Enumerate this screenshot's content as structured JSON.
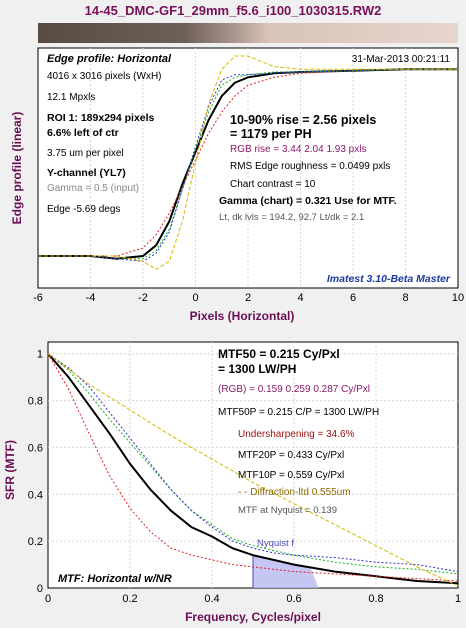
{
  "page": {
    "title": "14-45_DMC-GF1_29mm_f5.6_i100_1030315.RW2"
  },
  "top_chart_text": {
    "panel_title": "Edge profile: Horizontal",
    "date": "31-Mar-2013 00:21:11",
    "info": [
      "4016 x 3016 pixels (WxH)",
      "12.1 Mpxls",
      "ROI 1:  189x294 pixels",
      "6.6% left of ctr",
      "3.75 um per pixel",
      "Y-channel  (YL7)",
      "Gamma = 0.5 (input)",
      "Edge -5.69 degs"
    ],
    "results": {
      "rise": "10-90% rise = 2.56 pixels",
      "per_ph": "= 1179 per PH",
      "rgb_rise": "RGB rise = 3.44  2.04  1.93 pxls",
      "roughness": "RMS Edge roughness = 0.0499 pxls",
      "contrast": "Chart contrast = 10",
      "gamma_chart": "Gamma (chart) = 0.321  Use for MTF.",
      "levels": "Lt, dk lvls = 194.2, 92.7  Lt/dk = 2.1"
    },
    "watermark": "Imatest 3.10-Beta Master"
  },
  "bottom_chart_text": {
    "mtf50": "MTF50 = 0.215 Cy/Pxl",
    "lwph": "= 1300 LW/PH",
    "rgb": "(RGB) = 0.159  0.259  0.287 Cy/Pxl",
    "mtf50p": "MTF50P = 0.215 C/P = 1300 LW/PH",
    "sharpening": "Undersharpening = 34.6%",
    "mtf20p": "MTF20P = 0.433 Cy/Pxl",
    "mtf10p": "MTF10P = 0.559 Cy/Pxl",
    "diffraction": "- -  Diffraction-ltd  0.555um",
    "nyquist_mtf": "MTF at Nyquist = 0.139",
    "nyquist_label": "Nyquist f",
    "bottom_title": "MTF: Horizontal w/NR"
  },
  "colors": {
    "title": "#7a0f5a",
    "axis_label": "#6a0f55",
    "black": "#000000",
    "red": "#e02020",
    "green": "#18b018",
    "blue": "#3030d0",
    "yellow": "#d8b800",
    "purple": "#6a1f7a",
    "dark_red": "#9a1010",
    "watermark": "#1a3aa0",
    "nyquist_fill": "#b8b8f0",
    "plot_bg": "#ffffff"
  },
  "chart_data": [
    {
      "type": "line",
      "xlabel": "Pixels (Horizontal)",
      "ylabel": "Edge profile (linear)",
      "xlim": [
        -6,
        10
      ],
      "x_ticks": [
        "-6",
        "-4",
        "-2",
        "0",
        "2",
        "4",
        "6",
        "8",
        "10"
      ],
      "series": [
        {
          "color": "black",
          "x": [
            -6,
            -4,
            -3,
            -2,
            -1.5,
            -1,
            -0.5,
            0,
            0.5,
            1,
            1.5,
            2,
            3,
            4,
            6,
            8,
            10
          ],
          "y": [
            0.27,
            0.27,
            0.26,
            0.27,
            0.31,
            0.4,
            0.54,
            0.66,
            0.78,
            0.87,
            0.92,
            0.94,
            0.955,
            0.96,
            0.965,
            0.97,
            0.97
          ]
        },
        {
          "color": "red",
          "x": [
            -6,
            -4,
            -3,
            -2,
            -1.5,
            -1,
            -0.5,
            0,
            0.5,
            1,
            1.5,
            2,
            3,
            4,
            6,
            8,
            10
          ],
          "y": [
            0.27,
            0.27,
            0.27,
            0.3,
            0.35,
            0.43,
            0.53,
            0.63,
            0.73,
            0.81,
            0.87,
            0.91,
            0.94,
            0.955,
            0.965,
            0.97,
            0.97
          ]
        },
        {
          "color": "green",
          "x": [
            -6,
            -4,
            -3,
            -2,
            -1.5,
            -1,
            -0.5,
            0,
            0.5,
            1,
            1.5,
            2,
            3,
            4,
            6,
            8,
            10
          ],
          "y": [
            0.27,
            0.27,
            0.26,
            0.26,
            0.29,
            0.37,
            0.52,
            0.67,
            0.81,
            0.91,
            0.94,
            0.95,
            0.96,
            0.96,
            0.965,
            0.97,
            0.97
          ]
        },
        {
          "color": "blue",
          "x": [
            -6,
            -4,
            -3,
            -2,
            -1.5,
            -1,
            -0.5,
            0,
            0.5,
            1,
            1.5,
            2,
            3,
            4,
            6,
            8,
            10
          ],
          "y": [
            0.27,
            0.27,
            0.26,
            0.25,
            0.28,
            0.36,
            0.52,
            0.68,
            0.83,
            0.93,
            0.95,
            0.95,
            0.955,
            0.96,
            0.965,
            0.97,
            0.97
          ]
        },
        {
          "color": "yellow",
          "x": [
            -6,
            -4,
            -3,
            -2,
            -1.5,
            -1,
            -0.5,
            0,
            0.5,
            1,
            1.5,
            2,
            2.5,
            3,
            4,
            6,
            8,
            10
          ],
          "y": [
            0.27,
            0.27,
            0.27,
            0.25,
            0.22,
            0.25,
            0.4,
            0.62,
            0.84,
            0.97,
            1.02,
            1.02,
            1.0,
            0.98,
            0.97,
            0.97,
            0.97,
            0.97
          ]
        }
      ]
    },
    {
      "type": "line",
      "xlabel": "Frequency, Cycles/pixel",
      "ylabel": "SFR (MTF)",
      "xlim": [
        0,
        1
      ],
      "ylim": [
        0,
        1.05
      ],
      "x_ticks": [
        "0",
        "0.2",
        "0.4",
        "0.6",
        "0.8",
        "1"
      ],
      "y_ticks": [
        "0",
        "0.2",
        "0.4",
        "0.6",
        "0.8",
        "1"
      ],
      "nyquist": 0.5,
      "series": [
        {
          "color": "black",
          "x": [
            0,
            0.05,
            0.1,
            0.15,
            0.2,
            0.25,
            0.3,
            0.35,
            0.4,
            0.45,
            0.5,
            0.55,
            0.6,
            0.7,
            0.8,
            0.9,
            1
          ],
          "y": [
            1,
            0.9,
            0.78,
            0.66,
            0.53,
            0.42,
            0.33,
            0.26,
            0.22,
            0.17,
            0.14,
            0.12,
            0.1,
            0.07,
            0.05,
            0.03,
            0.02
          ]
        },
        {
          "color": "red",
          "x": [
            0,
            0.05,
            0.1,
            0.15,
            0.2,
            0.25,
            0.3,
            0.35,
            0.4,
            0.45,
            0.5,
            0.55,
            0.6,
            0.7,
            0.8,
            0.9,
            1
          ],
          "y": [
            1,
            0.85,
            0.66,
            0.48,
            0.34,
            0.24,
            0.17,
            0.14,
            0.12,
            0.1,
            0.09,
            0.08,
            0.07,
            0.06,
            0.05,
            0.04,
            0.03
          ]
        },
        {
          "color": "green",
          "x": [
            0,
            0.05,
            0.1,
            0.15,
            0.2,
            0.25,
            0.3,
            0.35,
            0.4,
            0.45,
            0.5,
            0.55,
            0.6,
            0.7,
            0.8,
            0.9,
            1
          ],
          "y": [
            1,
            0.93,
            0.83,
            0.72,
            0.62,
            0.52,
            0.42,
            0.33,
            0.27,
            0.21,
            0.18,
            0.16,
            0.14,
            0.11,
            0.09,
            0.08,
            0.06
          ]
        },
        {
          "color": "blue",
          "x": [
            0,
            0.05,
            0.1,
            0.15,
            0.2,
            0.25,
            0.3,
            0.35,
            0.4,
            0.45,
            0.5,
            0.55,
            0.6,
            0.7,
            0.8,
            0.9,
            1
          ],
          "y": [
            1,
            0.94,
            0.86,
            0.75,
            0.64,
            0.53,
            0.42,
            0.33,
            0.26,
            0.2,
            0.17,
            0.15,
            0.14,
            0.13,
            0.11,
            0.1,
            0.07
          ]
        },
        {
          "color": "yellow",
          "x": [
            0,
            0.1,
            0.2,
            0.3,
            0.4,
            0.5,
            0.6,
            0.7,
            0.8,
            0.9,
            1
          ],
          "y": [
            1,
            0.87,
            0.76,
            0.65,
            0.55,
            0.45,
            0.36,
            0.27,
            0.18,
            0.09,
            0.01
          ]
        }
      ]
    }
  ]
}
